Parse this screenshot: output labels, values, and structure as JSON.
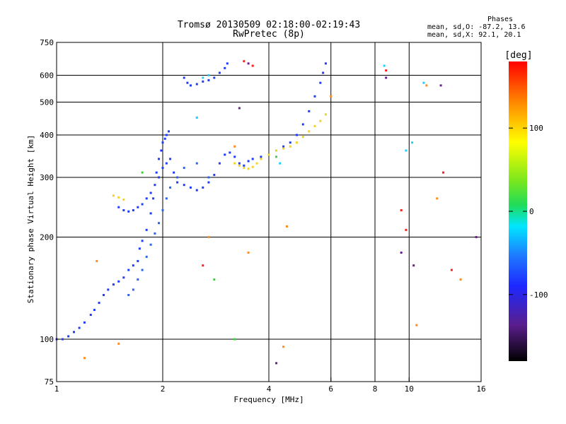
{
  "header": {
    "title_line_1": "Tromsø 20130509 02:18:00-02:19:43",
    "title_line_2": "RwPretec (8p)"
  },
  "phase_info": {
    "title": "Phases",
    "line_1": "mean, sd,O: -87.2, 13.6",
    "line_2": "mean, sd,X:  92.1, 20.1"
  },
  "colors": {
    "grid": "#000000",
    "background": "#ffffff",
    "blue": "#1e3cff",
    "mid_blue": "#2a64f0",
    "cyan": "#1ad2ff",
    "yellow": "#f5d21e",
    "orange": "#ff8c1e",
    "red": "#ff1e1e",
    "green": "#3cd23c",
    "purple": "#6e1e8c"
  },
  "chart_data": {
    "type": "scatter",
    "title": "Tromsø 20130509 02:18:00-02:19:43",
    "subtitle": "RwPretec (8p)",
    "xlabel": "Frequency [MHz]",
    "ylabel": "Stationary phase Virtual Height [km]",
    "x_scale": "log",
    "y_scale": "log",
    "xlim": [
      1,
      16
    ],
    "ylim": [
      75,
      750
    ],
    "x_ticks": [
      1,
      2,
      4,
      6,
      8,
      10,
      16
    ],
    "x_tick_labels": [
      "1",
      "2",
      "4",
      "6",
      "8",
      "10",
      "16"
    ],
    "y_ticks": [
      75,
      100,
      200,
      300,
      400,
      500,
      600,
      750
    ],
    "y_tick_labels": [
      "75",
      "100",
      "200",
      "300",
      "400",
      "500",
      "600",
      "750"
    ],
    "grid": true,
    "colorbar": {
      "label": "[deg]",
      "range": [
        -180,
        180
      ],
      "ticks": [
        100,
        0,
        -100
      ],
      "tick_labels": [
        "100",
        "0",
        "-100"
      ]
    },
    "series": [
      {
        "phase": -100,
        "color": "#1e3cff",
        "x": [
          1.0,
          1.04,
          1.08,
          1.12,
          1.16,
          1.2,
          1.25,
          1.28,
          1.32,
          1.36,
          1.4,
          1.45,
          1.5,
          1.55,
          1.6,
          1.65,
          1.7,
          1.72,
          1.75,
          1.8,
          1.85,
          1.88,
          1.9,
          1.92,
          1.95,
          1.98,
          2.0,
          2.03,
          2.05,
          2.08,
          1.95,
          2.0,
          2.05,
          2.1,
          2.15,
          2.2,
          2.3,
          2.4,
          2.5,
          2.6,
          2.7,
          2.8,
          2.9,
          3.0,
          3.1,
          3.2,
          3.3,
          3.4,
          3.5,
          3.6,
          3.8,
          4.0,
          4.2,
          4.4,
          4.6,
          4.8,
          5.0,
          5.2,
          5.4,
          5.6,
          5.7,
          5.8,
          2.3,
          2.35,
          2.4,
          2.5,
          2.6,
          2.7,
          2.8,
          2.9,
          3.0,
          3.05,
          1.5,
          1.55,
          1.6,
          1.65,
          1.7,
          1.75,
          1.8,
          1.85
        ],
        "y": [
          100,
          100,
          102,
          105,
          108,
          112,
          118,
          122,
          128,
          135,
          140,
          145,
          148,
          152,
          160,
          165,
          170,
          185,
          195,
          210,
          235,
          260,
          285,
          310,
          340,
          360,
          380,
          390,
          400,
          410,
          300,
          320,
          330,
          340,
          310,
          290,
          285,
          280,
          275,
          280,
          290,
          305,
          330,
          350,
          355,
          345,
          330,
          325,
          335,
          340,
          345,
          350,
          360,
          370,
          380,
          400,
          430,
          470,
          520,
          570,
          610,
          650,
          590,
          570,
          560,
          565,
          575,
          580,
          590,
          610,
          630,
          650,
          245,
          240,
          238,
          240,
          245,
          250,
          260,
          270
        ]
      },
      {
        "phase": -90,
        "color": "#2a64f0",
        "x": [
          1.6,
          1.65,
          1.7,
          1.75,
          1.8,
          1.85,
          1.9,
          1.95,
          2.0,
          2.05,
          2.1,
          2.2,
          2.3,
          2.5,
          2.7
        ],
        "y": [
          135,
          140,
          150,
          160,
          175,
          190,
          205,
          220,
          240,
          260,
          280,
          300,
          320,
          330,
          300
        ]
      },
      {
        "phase": 100,
        "color": "#f5d21e",
        "x": [
          3.2,
          3.3,
          3.4,
          3.5,
          3.6,
          3.7,
          3.8,
          4.0,
          4.2,
          4.4,
          4.6,
          4.8,
          5.0,
          5.2,
          5.4,
          5.6,
          5.8,
          1.45,
          1.5,
          1.55
        ],
        "y": [
          330,
          325,
          320,
          318,
          322,
          330,
          340,
          350,
          360,
          365,
          370,
          380,
          395,
          410,
          425,
          440,
          460,
          265,
          262,
          258
        ]
      },
      {
        "phase": -30,
        "color": "#1ad2ff",
        "x": [
          2.6,
          2.7,
          8.5,
          10.2,
          11.0,
          4.3,
          9.8,
          2.5
        ],
        "y": [
          590,
          600,
          640,
          380,
          570,
          330,
          360,
          450
        ]
      },
      {
        "phase": 140,
        "color": "#ff8c1e",
        "x": [
          1.2,
          1.3,
          1.5,
          3.5,
          4.4,
          4.5,
          6.0,
          10.5,
          11.2,
          12.0,
          14.0,
          2.7,
          3.2
        ],
        "y": [
          88,
          170,
          97,
          180,
          95,
          215,
          520,
          110,
          560,
          260,
          150,
          200,
          370
        ]
      },
      {
        "phase": 180,
        "color": "#ff1e1e",
        "x": [
          2.6,
          3.4,
          3.6,
          9.5,
          9.8,
          12.5,
          13.2,
          8.6
        ],
        "y": [
          165,
          660,
          640,
          240,
          210,
          310,
          160,
          620
        ]
      },
      {
        "phase": 30,
        "color": "#3cd23c",
        "x": [
          2.8,
          3.2,
          1.75,
          4.2
        ],
        "y": [
          150,
          100,
          310,
          345
        ]
      },
      {
        "phase": -150,
        "color": "#6e1e8c",
        "x": [
          3.3,
          3.5,
          8.6,
          9.5,
          10.3,
          12.3,
          15.5,
          4.2
        ],
        "y": [
          480,
          650,
          590,
          180,
          165,
          560,
          200,
          85
        ]
      }
    ]
  }
}
